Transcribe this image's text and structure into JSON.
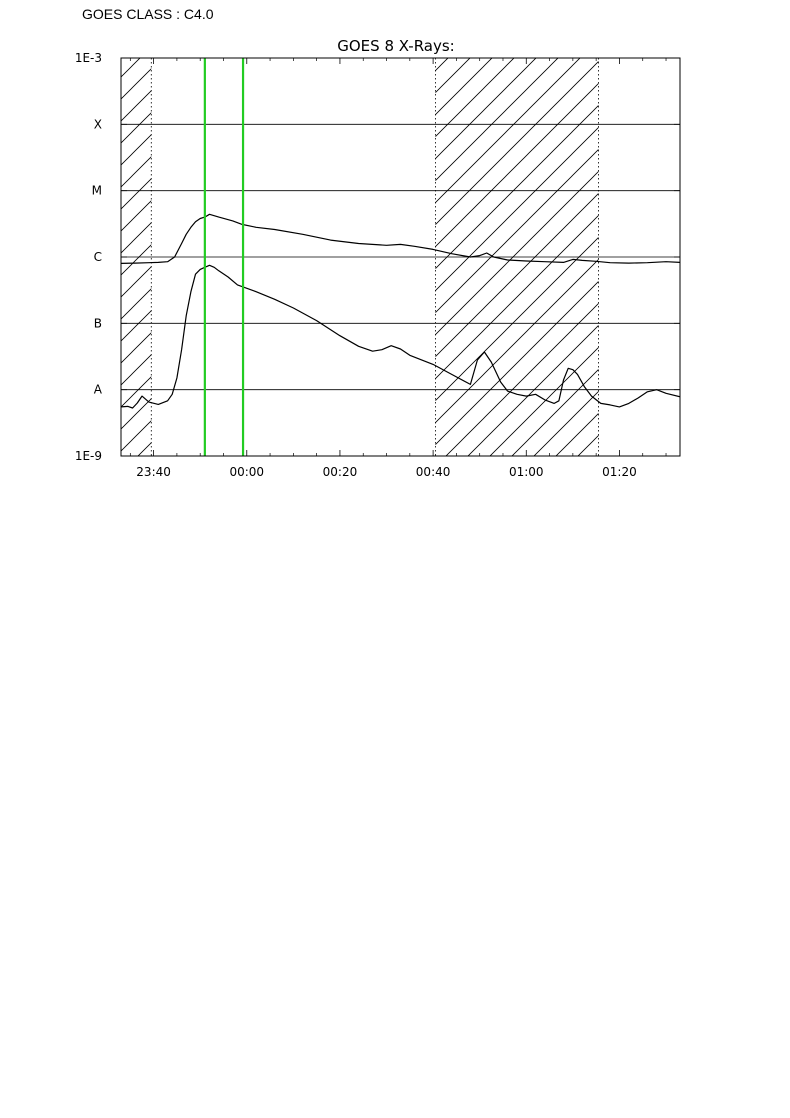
{
  "header": {
    "goes_class": "GOES CLASS : C4.0"
  },
  "chart_data": {
    "type": "line",
    "title": "GOES 8 X-Rays:",
    "xlabel": "",
    "ylabel": "",
    "y_scale": "log",
    "ylim": [
      1e-09,
      0.001
    ],
    "xlim_minutes": [
      -27,
      93
    ],
    "x_tick_labels": [
      {
        "label": "23:40",
        "minute": -20
      },
      {
        "label": "00:00",
        "minute": 0
      },
      {
        "label": "00:20",
        "minute": 20
      },
      {
        "label": "00:40",
        "minute": 40
      },
      {
        "label": "01:00",
        "minute": 60
      },
      {
        "label": "01:20",
        "minute": 80
      }
    ],
    "y_tick_labels": [
      {
        "label": "1E-3",
        "value": 0.001
      },
      {
        "label": "X",
        "value": 0.0001
      },
      {
        "label": "M",
        "value": 1e-05
      },
      {
        "label": "C",
        "value": 1e-06
      },
      {
        "label": "B",
        "value": 1e-07
      },
      {
        "label": "A",
        "value": 1e-08
      },
      {
        "label": "1E-9",
        "value": 1e-09
      }
    ],
    "grid_y": true,
    "series": [
      {
        "x": [
          -27,
          -24,
          -21,
          -19,
          -17,
          -15.5,
          -14,
          -13,
          -12,
          -11,
          -10,
          -9,
          -8,
          -6,
          -3,
          -1,
          2,
          6,
          12,
          18,
          24,
          30,
          33,
          36,
          40,
          44,
          48,
          50,
          51.5,
          53,
          56,
          60,
          64,
          68,
          70,
          72,
          75,
          78,
          82,
          86,
          90,
          93
        ],
        "y": [
          8e-07,
          8.1e-07,
          8.2e-07,
          8.3e-07,
          8.5e-07,
          1e-06,
          1.6e-06,
          2.2e-06,
          2.8e-06,
          3.4e-06,
          3.8e-06,
          4e-06,
          4.4e-06,
          4e-06,
          3.5e-06,
          3.1e-06,
          2.8e-06,
          2.6e-06,
          2.2e-06,
          1.8e-06,
          1.6e-06,
          1.5e-06,
          1.55e-06,
          1.45e-06,
          1.3e-06,
          1.12e-06,
          1e-06,
          1.05e-06,
          1.15e-06,
          1e-06,
          9e-07,
          8.7e-07,
          8.5e-07,
          8.3e-07,
          9.2e-07,
          8.9e-07,
          8.6e-07,
          8.2e-07,
          8.1e-07,
          8.2e-07,
          8.5e-07,
          8.3e-07
        ]
      },
      {
        "x": [
          -27,
          -25.5,
          -24.5,
          -23.5,
          -22.5,
          -21,
          -19,
          -17,
          -16,
          -15,
          -14,
          -13,
          -12,
          -11,
          -10,
          -9,
          -8,
          -7,
          -6,
          -4,
          -2,
          2,
          6,
          10,
          15,
          20,
          24,
          27,
          29,
          31,
          33,
          35,
          40,
          44,
          48,
          49.5,
          51,
          52.5,
          54.5,
          56,
          58,
          60,
          62,
          64,
          66,
          67,
          68,
          69,
          70,
          71,
          72.5,
          74,
          76,
          78,
          80,
          82,
          84,
          86,
          88,
          90,
          93
        ],
        "y": [
          5.5e-09,
          5.6e-09,
          5.3e-09,
          6.3e-09,
          8e-09,
          6.5e-09,
          6e-09,
          6.8e-09,
          8.5e-09,
          1.5e-08,
          4e-08,
          1.3e-07,
          3e-07,
          5.5e-07,
          6.5e-07,
          7e-07,
          7.5e-07,
          7e-07,
          6.2e-07,
          5e-07,
          3.8e-07,
          3e-07,
          2.3e-07,
          1.7e-07,
          1.1e-07,
          6.5e-08,
          4.5e-08,
          3.8e-08,
          4e-08,
          4.6e-08,
          4.1e-08,
          3.3e-08,
          2.4e-08,
          1.7e-08,
          1.2e-08,
          2.8e-08,
          3.7e-08,
          2.6e-08,
          1.3e-08,
          9.5e-09,
          8.5e-09,
          8e-09,
          8.5e-09,
          7e-09,
          6.2e-09,
          6.8e-09,
          1.4e-08,
          2.1e-08,
          2e-08,
          1.7e-08,
          1.1e-08,
          8e-09,
          6.2e-09,
          5.9e-09,
          5.5e-09,
          6.2e-09,
          7.5e-09,
          9.3e-09,
          1e-08,
          8.8e-09,
          7.8e-09
        ]
      }
    ],
    "shaded_regions_minutes": [
      [
        -27,
        -20.5
      ],
      [
        40.5,
        75.5
      ]
    ],
    "vertical_markers_minutes": [
      -9,
      -0.8
    ],
    "colors": {
      "series": "#000000",
      "marker": "#22cc22",
      "hatch": "#000000",
      "grid": "#000000"
    }
  }
}
